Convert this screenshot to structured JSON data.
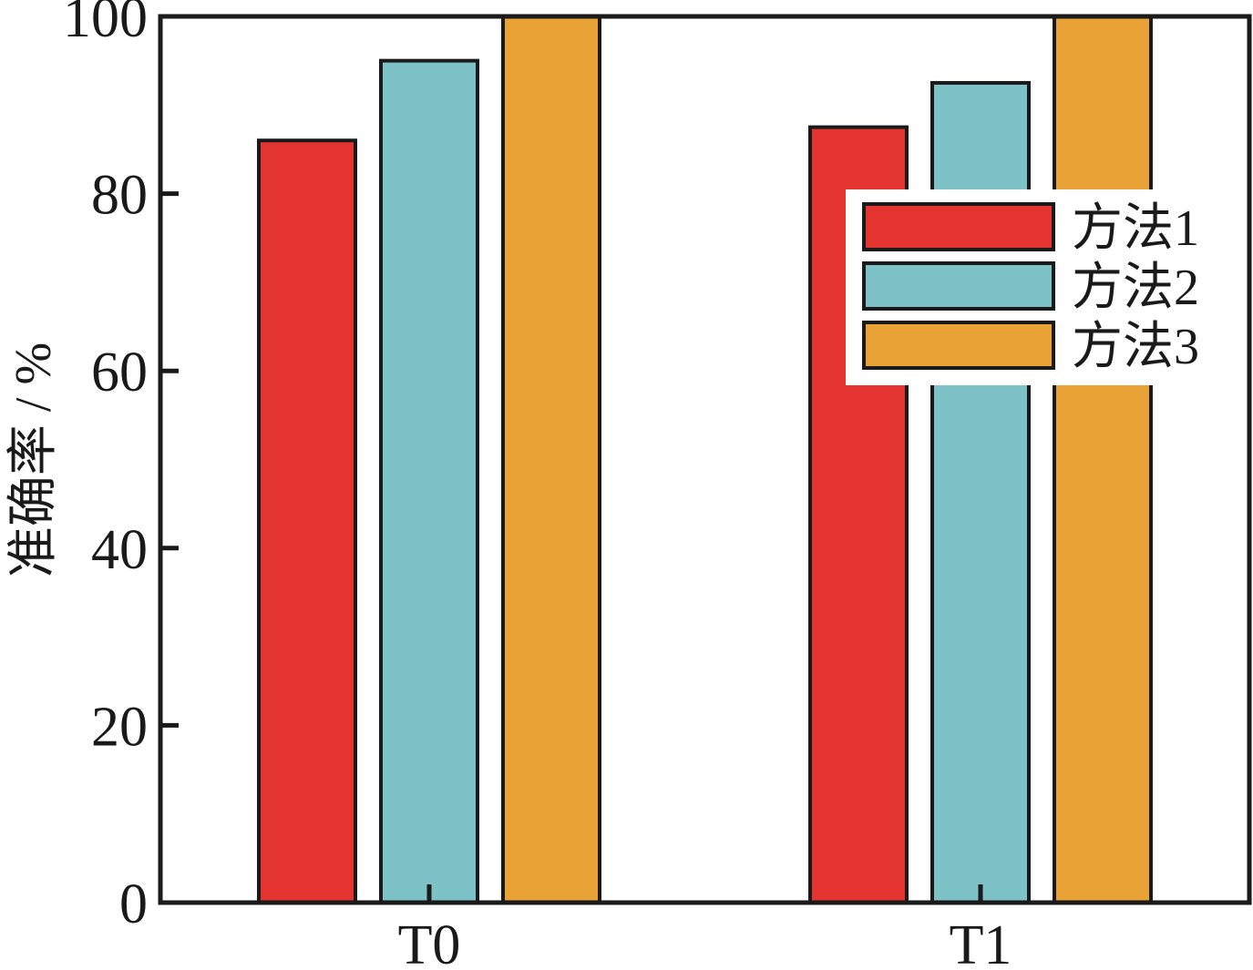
{
  "chart_data": {
    "type": "bar",
    "categories": [
      "T0",
      "T1"
    ],
    "series": [
      {
        "name": "方法1",
        "color": "#e3342f",
        "values": [
          86,
          87.5
        ]
      },
      {
        "name": "方法2",
        "color": "#7dc2c6",
        "values": [
          95,
          92.5
        ]
      },
      {
        "name": "方法3",
        "color": "#e8a235",
        "values": [
          100,
          100
        ]
      }
    ],
    "xlabel": "",
    "ylabel": "准确率 / %",
    "ylim": [
      0,
      100
    ],
    "yticks": [
      "0",
      "20",
      "40",
      "60",
      "80",
      "100"
    ],
    "legend_position": "top-right",
    "grid": false
  }
}
